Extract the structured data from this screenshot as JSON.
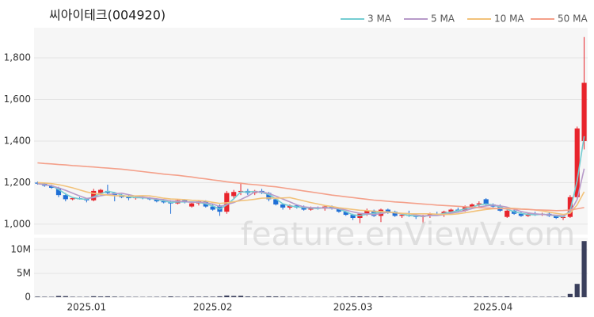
{
  "chart_data": {
    "type": "candlestick",
    "title": "씨아이테크(004920)",
    "watermark": "feature.enViewV.com",
    "categories": [
      null,
      null,
      null,
      null,
      null,
      null,
      null,
      "2025.01",
      null,
      null,
      null,
      null,
      null,
      null,
      null,
      null,
      null,
      null,
      null,
      null,
      null,
      null,
      null,
      null,
      null,
      "2025.02",
      null,
      null,
      null,
      null,
      null,
      null,
      null,
      null,
      null,
      null,
      null,
      null,
      null,
      null,
      null,
      null,
      null,
      null,
      null,
      "2025.03",
      null,
      null,
      null,
      null,
      null,
      null,
      null,
      null,
      null,
      null,
      null,
      null,
      null,
      null,
      null,
      null,
      null,
      null,
      null,
      "2025.04",
      null,
      null,
      null,
      null,
      null,
      null,
      null,
      null,
      null,
      null,
      null,
      null,
      null
    ],
    "up_color": "#e8242c",
    "down_color": "#1f6fd6",
    "open": [
      1200,
      1195,
      1185,
      1175,
      1140,
      1120,
      1125,
      1120,
      1115,
      1150,
      1160,
      1150,
      1140,
      1130,
      1125,
      1130,
      1125,
      1120,
      1110,
      1105,
      1100,
      1115,
      1085,
      1100,
      1110,
      1085,
      1090,
      1060,
      1135,
      1155,
      1160,
      1150,
      1160,
      1150,
      1120,
      1095,
      1080,
      1090,
      1080,
      1070,
      1080,
      1075,
      1085,
      1075,
      1060,
      1045,
      1030,
      1050,
      1065,
      1040,
      1070,
      1060,
      1040,
      1045,
      1040,
      1035,
      1040,
      1050,
      1045,
      1060,
      1070,
      1065,
      1085,
      1095,
      1120,
      1095,
      1085,
      1035,
      1065,
      1050,
      1040,
      1050,
      1045,
      1050,
      1040,
      1030,
      1035,
      1130,
      1400
    ],
    "high": [
      1205,
      1200,
      1190,
      1180,
      1150,
      1130,
      1130,
      1125,
      1170,
      1170,
      1190,
      1155,
      1145,
      1140,
      1135,
      1135,
      1130,
      1125,
      1120,
      1115,
      1120,
      1120,
      1110,
      1115,
      1115,
      1095,
      1095,
      1160,
      1165,
      1200,
      1170,
      1165,
      1170,
      1155,
      1125,
      1100,
      1095,
      1095,
      1090,
      1085,
      1085,
      1090,
      1090,
      1080,
      1065,
      1050,
      1055,
      1075,
      1070,
      1075,
      1075,
      1065,
      1050,
      1065,
      1050,
      1045,
      1055,
      1060,
      1065,
      1075,
      1080,
      1090,
      1100,
      1110,
      1125,
      1100,
      1095,
      1070,
      1070,
      1060,
      1055,
      1060,
      1055,
      1055,
      1045,
      1040,
      1140,
      1470,
      1900
    ],
    "low": [
      1190,
      1180,
      1170,
      1130,
      1110,
      1115,
      1118,
      1105,
      1110,
      1140,
      1140,
      1110,
      1125,
      1115,
      1118,
      1120,
      1115,
      1105,
      1100,
      1050,
      1095,
      1100,
      1080,
      1090,
      1080,
      1065,
      1040,
      1050,
      1120,
      1140,
      1140,
      1140,
      1145,
      1110,
      1090,
      1070,
      1070,
      1075,
      1065,
      1065,
      1070,
      1065,
      1070,
      1055,
      1040,
      1020,
      1005,
      1040,
      1035,
      1010,
      1050,
      1035,
      1030,
      1035,
      1025,
      1005,
      1030,
      1040,
      1035,
      1050,
      1055,
      1060,
      1075,
      1085,
      1085,
      1080,
      1060,
      1030,
      1045,
      1035,
      1035,
      1040,
      1040,
      1035,
      1025,
      1020,
      1030,
      1120,
      1360
    ],
    "close": [
      1195,
      1185,
      1175,
      1140,
      1120,
      1125,
      1120,
      1115,
      1160,
      1165,
      1150,
      1140,
      1130,
      1125,
      1130,
      1125,
      1120,
      1110,
      1105,
      1100,
      1115,
      1105,
      1100,
      1110,
      1085,
      1070,
      1060,
      1150,
      1155,
      1160,
      1150,
      1160,
      1150,
      1120,
      1095,
      1080,
      1090,
      1080,
      1070,
      1080,
      1075,
      1085,
      1075,
      1060,
      1045,
      1030,
      1050,
      1065,
      1040,
      1070,
      1060,
      1040,
      1045,
      1040,
      1035,
      1040,
      1050,
      1045,
      1060,
      1070,
      1065,
      1085,
      1095,
      1100,
      1095,
      1085,
      1065,
      1065,
      1050,
      1040,
      1050,
      1045,
      1050,
      1040,
      1030,
      1035,
      1130,
      1460,
      1680
    ],
    "volume": [
      120000,
      90000,
      80000,
      260000,
      220000,
      90000,
      70000,
      80000,
      200000,
      150000,
      180000,
      120000,
      90000,
      80000,
      70000,
      60000,
      70000,
      80000,
      90000,
      160000,
      90000,
      80000,
      130000,
      110000,
      120000,
      110000,
      180000,
      350000,
      260000,
      300000,
      150000,
      120000,
      110000,
      180000,
      160000,
      130000,
      100000,
      90000,
      90000,
      80000,
      70000,
      80000,
      70000,
      90000,
      110000,
      140000,
      160000,
      130000,
      110000,
      170000,
      100000,
      110000,
      80000,
      90000,
      80000,
      120000,
      90000,
      80000,
      90000,
      110000,
      90000,
      120000,
      140000,
      110000,
      150000,
      100000,
      110000,
      160000,
      100000,
      90000,
      80000,
      80000,
      70000,
      80000,
      90000,
      100000,
      700000,
      2800000,
      11800000
    ],
    "ma_series": [
      {
        "name": "3 MA",
        "color": "#74cdd2",
        "values": [
          1195,
          1190,
          1185,
          1167,
          1145,
          1128,
          1122,
          1120,
          1132,
          1147,
          1158,
          1152,
          1140,
          1132,
          1128,
          1127,
          1125,
          1118,
          1112,
          1105,
          1107,
          1107,
          1107,
          1105,
          1098,
          1088,
          1072,
          1093,
          1122,
          1155,
          1155,
          1157,
          1153,
          1143,
          1122,
          1098,
          1088,
          1083,
          1080,
          1077,
          1075,
          1080,
          1078,
          1073,
          1060,
          1045,
          1042,
          1048,
          1052,
          1058,
          1057,
          1057,
          1048,
          1042,
          1040,
          1038,
          1042,
          1045,
          1052,
          1058,
          1065,
          1073,
          1082,
          1093,
          1097,
          1093,
          1082,
          1072,
          1060,
          1052,
          1047,
          1045,
          1048,
          1045,
          1040,
          1035,
          1065,
          1208,
          1423
        ]
      },
      {
        "name": "5 MA",
        "color": "#b79ac9",
        "values": [
          1195,
          1190,
          1185,
          1174,
          1163,
          1149,
          1136,
          1124,
          1128,
          1137,
          1142,
          1146,
          1149,
          1142,
          1135,
          1130,
          1126,
          1122,
          1118,
          1112,
          1110,
          1109,
          1105,
          1107,
          1103,
          1097,
          1085,
          1095,
          1104,
          1119,
          1135,
          1155,
          1155,
          1148,
          1135,
          1121,
          1107,
          1093,
          1083,
          1080,
          1079,
          1078,
          1077,
          1075,
          1068,
          1059,
          1052,
          1050,
          1046,
          1051,
          1057,
          1055,
          1051,
          1051,
          1044,
          1040,
          1042,
          1042,
          1046,
          1053,
          1058,
          1065,
          1075,
          1083,
          1088,
          1092,
          1088,
          1082,
          1072,
          1061,
          1054,
          1050,
          1047,
          1045,
          1043,
          1040,
          1058,
          1119,
          1267
        ]
      },
      {
        "name": "10 MA",
        "color": "#f2c27a",
        "values": [
          1200,
          1198,
          1195,
          1190,
          1183,
          1175,
          1165,
          1155,
          1148,
          1144,
          1140,
          1137,
          1136,
          1135,
          1136,
          1137,
          1136,
          1131,
          1125,
          1121,
          1120,
          1118,
          1115,
          1114,
          1111,
          1105,
          1100,
          1103,
          1108,
          1113,
          1116,
          1120,
          1125,
          1126,
          1125,
          1126,
          1128,
          1120,
          1112,
          1104,
          1097,
          1090,
          1085,
          1079,
          1075,
          1071,
          1067,
          1065,
          1062,
          1061,
          1059,
          1055,
          1052,
          1050,
          1050,
          1050,
          1050,
          1048,
          1047,
          1047,
          1050,
          1055,
          1060,
          1066,
          1071,
          1074,
          1075,
          1077,
          1076,
          1073,
          1072,
          1068,
          1064,
          1058,
          1052,
          1047,
          1053,
          1093,
          1156
        ]
      },
      {
        "name": "50 MA",
        "color": "#f4a08a",
        "values": [
          1295,
          1292,
          1290,
          1287,
          1285,
          1282,
          1280,
          1277,
          1275,
          1272,
          1270,
          1267,
          1265,
          1261,
          1257,
          1253,
          1249,
          1245,
          1241,
          1238,
          1235,
          1231,
          1227,
          1222,
          1218,
          1213,
          1209,
          1204,
          1200,
          1197,
          1193,
          1190,
          1187,
          1183,
          1180,
          1175,
          1170,
          1165,
          1160,
          1155,
          1150,
          1145,
          1140,
          1136,
          1132,
          1128,
          1124,
          1120,
          1116,
          1113,
          1110,
          1107,
          1105,
          1102,
          1100,
          1097,
          1095,
          1092,
          1090,
          1088,
          1086,
          1084,
          1082,
          1080,
          1078,
          1077,
          1075,
          1074,
          1073,
          1072,
          1071,
          1069,
          1068,
          1067,
          1065,
          1066,
          1068,
          1074,
          1080
        ]
      }
    ],
    "ylim": [
      950,
      1945
    ],
    "yticks": [
      {
        "value": 1000,
        "label": "1,000"
      },
      {
        "value": 1200,
        "label": "1,200"
      },
      {
        "value": 1400,
        "label": "1,400"
      },
      {
        "value": 1600,
        "label": "1,600"
      },
      {
        "value": 1800,
        "label": "1,800"
      }
    ],
    "volume_color": "#3a3f5c",
    "volume_ylim": [
      0,
      12500000
    ],
    "volume_yticks": [
      0,
      {
        "value": 5000000,
        "label": "5M"
      },
      {
        "value": 10000000,
        "label": "10M"
      }
    ],
    "grid": true
  }
}
